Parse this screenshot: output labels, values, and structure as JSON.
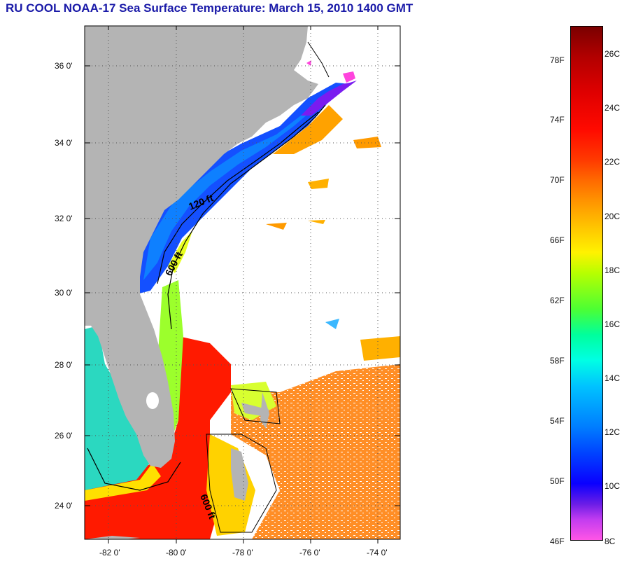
{
  "title": "RU COOL  NOAA-17  Sea Surface Temperature:  March 15, 2010 1400 GMT",
  "map": {
    "lat_labels": [
      "36 0'",
      "34 0'",
      "32 0'",
      "30 0'",
      "28 0'",
      "26 0'",
      "24 0'"
    ],
    "lon_labels": [
      "-82 0'",
      "-80 0'",
      "-78 0'",
      "-76 0'",
      "-74 0'"
    ],
    "contour_labels": [
      "120 ft",
      "600 ft",
      "600 ft"
    ],
    "colors": {
      "land": "#b4b4b4",
      "graticule": "#555555"
    }
  },
  "colorbar": {
    "fahrenheit": [
      "78F",
      "74F",
      "70F",
      "66F",
      "62F",
      "58F",
      "54F",
      "50F",
      "46F"
    ],
    "celsius": [
      "26C",
      "24C",
      "22C",
      "20C",
      "18C",
      "16C",
      "14C",
      "12C",
      "10C",
      "8C"
    ]
  }
}
